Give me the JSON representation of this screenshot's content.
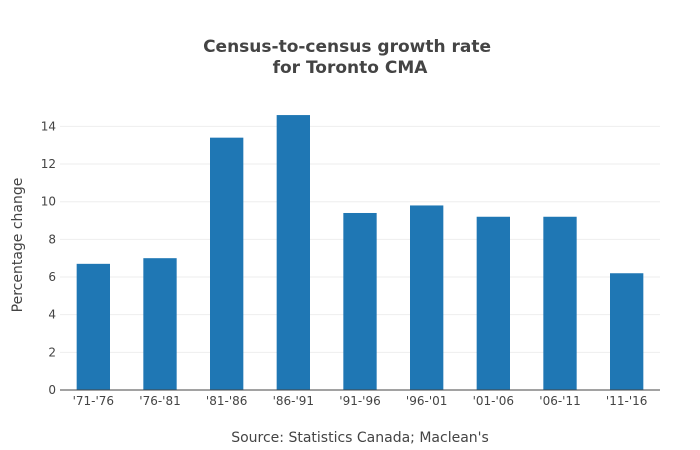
{
  "chart_data": {
    "type": "bar",
    "title_lines": [
      "Census-to-census growth rate",
      "for Toronto CMA"
    ],
    "xlabel": "Source: Statistics Canada; Maclean's",
    "ylabel": "Percentage change",
    "categories": [
      "'71-'76",
      "'76-'81",
      "'81-'86",
      "'86-'91",
      "'91-'96",
      "'96-'01",
      "'01-'06",
      "'06-'11",
      "'11-'16"
    ],
    "values": [
      6.7,
      7.0,
      13.4,
      14.6,
      9.4,
      9.8,
      9.2,
      9.2,
      6.2
    ],
    "ylim": [
      0,
      15.4
    ],
    "yticks": [
      0,
      2,
      4,
      6,
      8,
      10,
      12,
      14
    ],
    "grid": true,
    "bar_color": "#1f77b4"
  }
}
